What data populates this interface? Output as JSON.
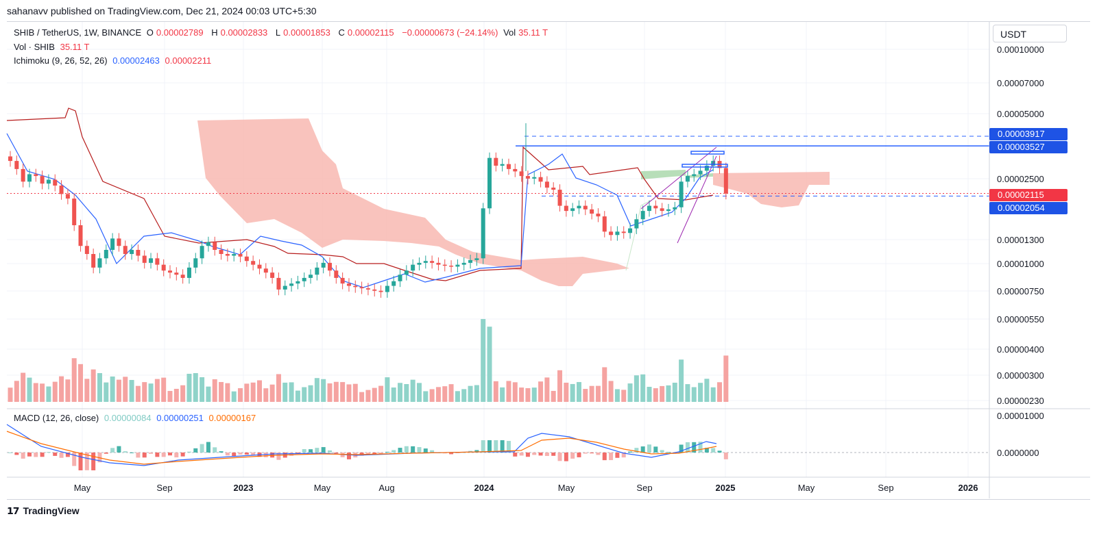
{
  "header": {
    "published": "sahanavv published on TradingView.com, Dec 21, 2024 00:03 UTC+5:30"
  },
  "legend": {
    "symbol": "SHIB / TetherUS, 1W, BINANCE",
    "o_label": "O",
    "o_value": "0.00002789",
    "h_label": "H",
    "h_value": "0.00002833",
    "l_label": "L",
    "l_value": "0.00001853",
    "c_label": "C",
    "c_value": "0.00002115",
    "change": "−0.00000673 (−24.14%)",
    "vol_label": "Vol",
    "vol_value": "35.11 T",
    "vol_line_label": "Vol · SHIB",
    "vol_line_value": "35.11 T",
    "ichimoku_label": "Ichimoku (9, 26, 52, 26)",
    "ichimoku_value1": "0.00002463",
    "ichimoku_value2": "0.00002211",
    "macd_label": "MACD (12, 26, close)",
    "macd_hist": "0.00000084",
    "macd_line": "0.00000251",
    "macd_signal": "0.00000167"
  },
  "currency_button": "USDT",
  "price_axis": {
    "ticks": [
      "0.00010000",
      "0.00007000",
      "0.00005000",
      "0.00002500",
      "0.00001300",
      "0.00001000",
      "0.00000750",
      "0.00000550",
      "0.00000400",
      "0.00000300",
      "0.00000230"
    ],
    "tags": {
      "upper_dashed": "0.00003917",
      "resistance": "0.00003527",
      "last_price": "0.00002115",
      "lower_dashed": "0.00002054"
    }
  },
  "macd_axis": {
    "ticks": [
      "0.00001000",
      "0.0000000"
    ]
  },
  "time_axis": {
    "labels": [
      {
        "text": "May",
        "bold": false
      },
      {
        "text": "Sep",
        "bold": false
      },
      {
        "text": "2023",
        "bold": true
      },
      {
        "text": "May",
        "bold": false
      },
      {
        "text": "Aug",
        "bold": false
      },
      {
        "text": "2024",
        "bold": true
      },
      {
        "text": "May",
        "bold": false
      },
      {
        "text": "Sep",
        "bold": false
      },
      {
        "text": "2025",
        "bold": true
      },
      {
        "text": "May",
        "bold": false
      },
      {
        "text": "Sep",
        "bold": false
      },
      {
        "text": "2026",
        "bold": true
      }
    ]
  },
  "footer": {
    "brand": "TradingView"
  },
  "colors": {
    "up": "#26a69a",
    "down": "#ef5350",
    "up_volume": "#8fd3c9",
    "down_volume": "#f5a3a1",
    "tenkan": "#2962ff",
    "kijun": "#b71c1c",
    "cloud_bear": "#f8b4ad",
    "cloud_bull": "#a5d6a7",
    "macd_line": "#2962ff",
    "signal_line": "#ff6d00",
    "tag_blue": "#1e53e5",
    "tag_red": "#f23645"
  },
  "chart_data": [
    {
      "type": "candlestick",
      "title": "SHIB / TetherUS, 1W, BINANCE",
      "scale": "log",
      "ylim": [
        2.3e-06,
        0.0001
      ],
      "x_range": [
        "2022-01",
        "2026-02"
      ],
      "series": [
        {
          "name": "close (weekly, approximate)",
          "values": [
            3e-05,
            2.75e-05,
            2.4e-05,
            2.6e-05,
            2.55e-05,
            2.35e-05,
            2.45e-05,
            2.3e-05,
            2.1e-05,
            2e-05,
            1.5e-05,
            1.2e-05,
            1.1e-05,
            9.5e-06,
            1.05e-05,
            1.15e-05,
            1.3e-05,
            1.2e-05,
            1.1e-05,
            1.15e-05,
            1.08e-05,
            1e-05,
            1.05e-05,
            9.8e-06,
            9.2e-06,
            9e-06,
            8.8e-06,
            8.5e-06,
            9.5e-06,
            1.05e-05,
            1.2e-05,
            1.25e-05,
            1.15e-05,
            1.1e-05,
            1.08e-05,
            1.1e-05,
            1.07e-05,
            1.02e-05,
            9.8e-06,
            9.4e-06,
            9e-06,
            8.5e-06,
            7.5e-06,
            7.8e-06,
            8e-06,
            8.2e-06,
            8.5e-06,
            8.8e-06,
            9.5e-06,
            1e-05,
            9.2e-06,
            8.5e-06,
            8e-06,
            7.8e-06,
            7.7e-06,
            7.6e-06,
            7.5e-06,
            7.4e-06,
            7.3e-06,
            7.8e-06,
            8.2e-06,
            8.8e-06,
            9.2e-06,
            9.8e-06,
            1e-05,
            1.02e-05,
            1e-05,
            9.8e-06,
            9.7e-06,
            9.6e-06,
            9.8e-06,
            1e-05,
            1.03e-05,
            1.05e-05,
            1.8e-05,
            3.1e-05,
            2.85e-05,
            2.9e-05,
            2.75e-05,
            2.68e-05,
            2.55e-05,
            2.48e-05,
            2.52e-05,
            2.4e-05,
            2.25e-05,
            2.2e-05,
            1.85e-05,
            1.75e-05,
            1.8e-05,
            1.85e-05,
            1.78e-05,
            1.7e-05,
            1.65e-05,
            1.4e-05,
            1.35e-05,
            1.4e-05,
            1.38e-05,
            1.45e-05,
            1.6e-05,
            1.75e-05,
            1.85e-05,
            1.8e-05,
            1.75e-05,
            1.78e-05,
            1.82e-05,
            2.4e-05,
            2.55e-05,
            2.6e-05,
            2.7e-05,
            2.85e-05,
            3e-05,
            2.78e-05,
            2.11e-05
          ]
        }
      ],
      "indicators": {
        "ichimoku": {
          "params": [
            9,
            26,
            52,
            26
          ],
          "tenkan": 2.463e-05,
          "kijun": 2.211e-05
        },
        "horizontal_levels": {
          "upper_dashed": 3.917e-05,
          "resistance": 3.527e-05,
          "last_price": 2.115e-05,
          "lower_dashed": 2.054e-05
        }
      }
    },
    {
      "type": "bar",
      "title": "Vol · SHIB",
      "series": [
        {
          "name": "Vol · SHIB",
          "last": "35.11 T"
        }
      ]
    },
    {
      "type": "line",
      "title": "MACD (12, 26, close)",
      "ylim": [
        -4e-06,
        1e-05
      ],
      "series": [
        {
          "name": "histogram",
          "last": 8.4e-07
        },
        {
          "name": "MACD",
          "last": 2.51e-06
        },
        {
          "name": "signal",
          "last": 1.67e-06
        }
      ]
    }
  ]
}
